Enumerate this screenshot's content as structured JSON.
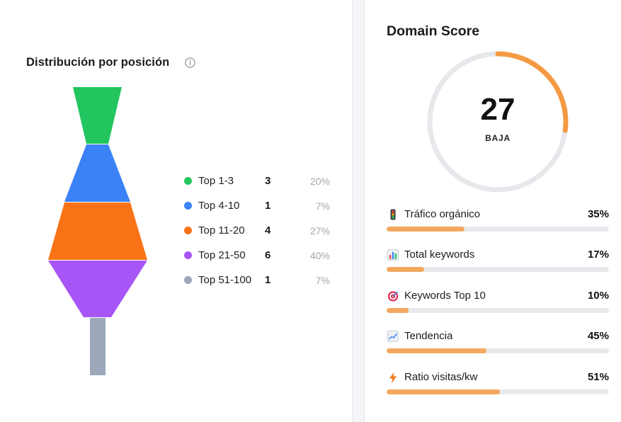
{
  "distribution": {
    "title": "Distribución por posición",
    "info_icon": "info-circle-icon",
    "rows": [
      {
        "label": "Top 1-3",
        "count": "3",
        "pct": "20%",
        "color": "#22c55e"
      },
      {
        "label": "Top 4-10",
        "count": "1",
        "pct": "7%",
        "color": "#3b82f6"
      },
      {
        "label": "Top 11-20",
        "count": "4",
        "pct": "27%",
        "color": "#f97316"
      },
      {
        "label": "Top 21-50",
        "count": "6",
        "pct": "40%",
        "color": "#a855f7"
      },
      {
        "label": "Top 51-100",
        "count": "1",
        "pct": "7%",
        "color": "#9ca8ba"
      }
    ]
  },
  "domain_score": {
    "title": "Domain Score",
    "value": "27",
    "value_fraction": 0.27,
    "label": "BAJA",
    "accent_color": "#f59a44",
    "track_color": "#e7e8eb",
    "metrics": [
      {
        "icon": "traffic-light-icon",
        "label": "Tráfico orgánico",
        "pct": "35%",
        "value": 0.35
      },
      {
        "icon": "bar-chart-icon",
        "label": "Total keywords",
        "pct": "17%",
        "value": 0.17
      },
      {
        "icon": "target-icon",
        "label": "Keywords Top 10",
        "pct": "10%",
        "value": 0.1
      },
      {
        "icon": "trend-chart-icon",
        "label": "Tendencia",
        "pct": "45%",
        "value": 0.45
      },
      {
        "icon": "lightning-icon",
        "label": "Ratio visitas/kw",
        "pct": "51%",
        "value": 0.51
      }
    ]
  }
}
